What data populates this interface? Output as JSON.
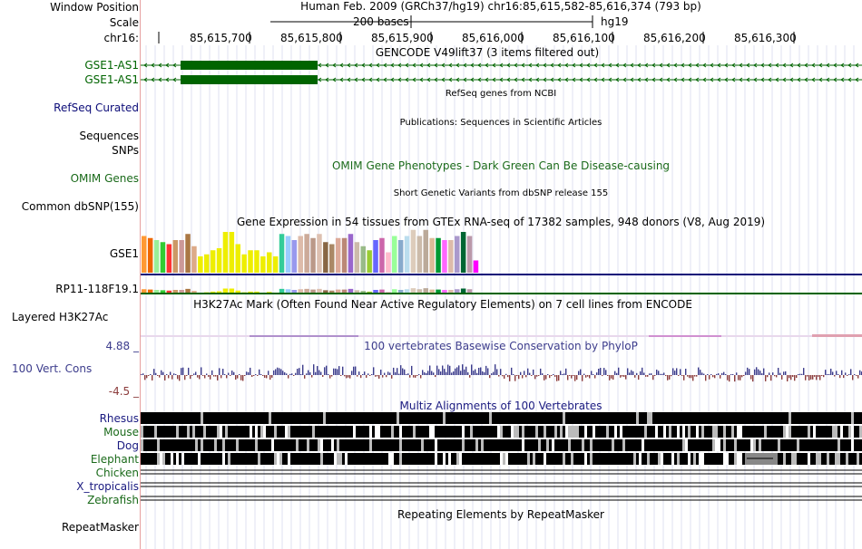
{
  "header": {
    "window_position_label": "Window Position",
    "scale_label": "Scale",
    "chrom_label": "chr16:",
    "assembly_text": "Human Feb. 2009 (GRCh37/hg19)   chr16:85,615,582-85,616,374 (793 bp)",
    "scale_text": "200 bases",
    "scale_db": "hg19",
    "positions": [
      "85,615,700",
      "85,615,800",
      "85,615,900",
      "85,616,000",
      "85,616,100",
      "85,616,200",
      "85,616,300"
    ]
  },
  "tracks": {
    "gencode": {
      "title": "GENCODE V49lift37 (3 items filtered out)",
      "items": [
        "GSE1-AS1",
        "GSE1-AS1"
      ]
    },
    "refseq": {
      "title": "RefSeq genes from NCBI",
      "label": "RefSeq Curated"
    },
    "publications": {
      "title": "Publications: Sequences in Scientific Articles",
      "labels": [
        "Sequences",
        "SNPs"
      ]
    },
    "omim": {
      "title": "OMIM Gene Phenotypes - Dark Green Can Be Disease-causing",
      "label": "OMIM Genes"
    },
    "dbsnp": {
      "title": "Short Genetic Variants from dbSNP release 155",
      "label": "Common dbSNP(155)"
    },
    "gtex": {
      "title": "Gene Expression in 54 tissues from GTEx RNA-seq of 17382 samples, 948 donors (V8, Aug 2019)",
      "genes": [
        "GSE1",
        "RP11-118F19.1"
      ],
      "tissue_values": [
        9,
        8.5,
        8,
        7.5,
        7,
        8,
        8,
        9.5,
        6.5,
        4,
        4.5,
        5.5,
        6,
        10,
        10,
        7,
        4.5,
        5.5,
        5.5,
        4,
        5,
        4,
        9.5,
        9,
        8,
        9,
        9.5,
        8.5,
        9.5,
        7.5,
        7,
        8.5,
        8.5,
        9.5,
        7.5,
        6.5,
        5.5,
        8,
        8.5,
        5,
        9,
        8,
        9,
        10.5,
        9,
        10.5,
        8.5,
        8.5,
        8,
        8,
        9,
        10,
        9,
        3
      ],
      "tissue_colors": [
        "#ff9933",
        "#ee6600",
        "#99ee99",
        "#33cc33",
        "#ff3333",
        "#cc9966",
        "#cc9999",
        "#aa7744",
        "#ddaa88",
        "#eeee00",
        "#eeee00",
        "#eeee00",
        "#eeee00",
        "#eeee00",
        "#eeee00",
        "#eeee00",
        "#eeee00",
        "#eeee00",
        "#eeee00",
        "#eeee00",
        "#eeee00",
        "#eeee00",
        "#33cc99",
        "#99ccff",
        "#9999ee",
        "#ddbbaa",
        "#ccaa99",
        "#bb9988",
        "#ddc0b0",
        "#886644",
        "#aa8866",
        "#ddaa99",
        "#bb8877",
        "#9966cc",
        "#ccbbaa",
        "#99bb88",
        "#99cc33",
        "#6666ff",
        "#cc66aa",
        "#ffbbcc",
        "#99ff99",
        "#88aacc",
        "#bbddee",
        "#ddccbb",
        "#ccbbaa",
        "#bbaa99",
        "#ddbb99",
        "#009933",
        "#ff66ff",
        "#ddbbaa",
        "#aa99cc",
        "#006633",
        "#bb99aa",
        "#ff00ff"
      ]
    },
    "h3k27ac": {
      "title": "H3K27Ac Mark (Often Found Near Active Regulatory Elements) on 7 cell lines from ENCODE",
      "label": "Layered H3K27Ac"
    },
    "conservation": {
      "title": "100 vertebrates Basewise Conservation by PhyloP",
      "label": "100 Vert. Cons",
      "max": "4.88 _",
      "min": "-4.5 _"
    },
    "multiz": {
      "title": "Multiz Alignments of 100 Vertebrates",
      "species": [
        "Rhesus",
        "Mouse",
        "Dog",
        "Elephant",
        "Chicken",
        "X_tropicalis",
        "Zebrafish"
      ]
    },
    "repeatmasker": {
      "title": "Repeating Elements by RepeatMasker",
      "label": "RepeatMasker"
    }
  },
  "colors": {
    "gene_green": "#006400",
    "refseq_blue": "#0c0c78",
    "omim_green": "#1a6a1a",
    "phylop_pos": "#3c3c8c",
    "phylop_neg": "#8c3c3c",
    "multiz_blue": "#1a1a80",
    "multiz_green": "#1a6a1a",
    "guide": "#dfe0f0"
  }
}
